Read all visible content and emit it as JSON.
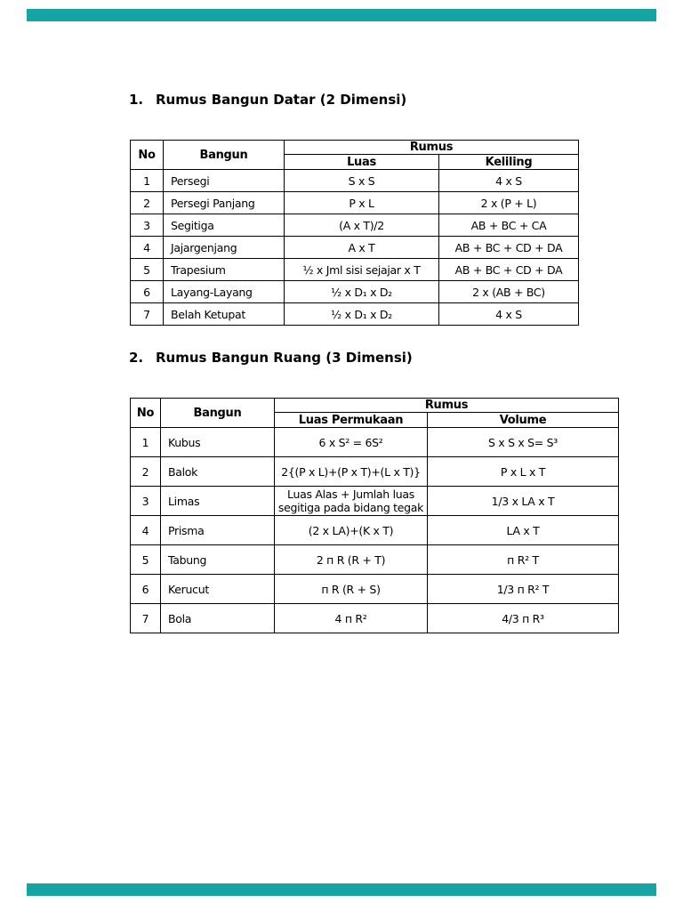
{
  "sections": {
    "s1": {
      "number": "1.",
      "title": "Rumus Bangun Datar (2 Dimensi)"
    },
    "s2": {
      "number": "2.",
      "title": "Rumus Bangun Ruang (3 Dimensi)"
    }
  },
  "table1": {
    "headers": {
      "no": "No",
      "bangun": "Bangun",
      "group": "Rumus",
      "sub1": "Luas",
      "sub2": "Keliling"
    },
    "rows": [
      {
        "no": "1",
        "bangun": "Persegi",
        "f1": "S x S",
        "f2": "4 x S"
      },
      {
        "no": "2",
        "bangun": "Persegi Panjang",
        "f1": "P x L",
        "f2": "2 x (P + L)"
      },
      {
        "no": "3",
        "bangun": "Segitiga",
        "f1": "(A x T)/2",
        "f2": "AB + BC + CA"
      },
      {
        "no": "4",
        "bangun": "Jajargenjang",
        "f1": "A x T",
        "f2": "AB + BC + CD + DA"
      },
      {
        "no": "5",
        "bangun": "Trapesium",
        "f1": "½ x Jml sisi sejajar x T",
        "f2": "AB + BC + CD + DA"
      },
      {
        "no": "6",
        "bangun": "Layang-Layang",
        "f1": "½ x D₁ x D₂",
        "f2": "2 x (AB + BC)"
      },
      {
        "no": "7",
        "bangun": "Belah Ketupat",
        "f1": "½ x D₁ x D₂",
        "f2": "4 x S"
      }
    ]
  },
  "table2": {
    "headers": {
      "no": "No",
      "bangun": "Bangun",
      "group": "Rumus",
      "sub1": "Luas Permukaan",
      "sub2": "Volume"
    },
    "rows": [
      {
        "no": "1",
        "bangun": "Kubus",
        "f1": "6 x S² = 6S²",
        "f2": "S x S x S= S³"
      },
      {
        "no": "2",
        "bangun": "Balok",
        "f1": "2{(P x L)+(P x T)+(L x T)}",
        "f2": "P x L x T"
      },
      {
        "no": "3",
        "bangun": "Limas",
        "f1": "Luas Alas + Jumlah luas segitiga pada bidang tegak",
        "f2": "1/3 x LA x T"
      },
      {
        "no": "4",
        "bangun": "Prisma",
        "f1": "(2 x LA)+(K x T)",
        "f2": "LA x T"
      },
      {
        "no": "5",
        "bangun": "Tabung",
        "f1": "2 п R (R + T)",
        "f2": "п R² T"
      },
      {
        "no": "6",
        "bangun": "Kerucut",
        "f1": "п R (R + S)",
        "f2": "1/3 п R² T"
      },
      {
        "no": "7",
        "bangun": "Bola",
        "f1": "4 п R²",
        "f2": "4/3 п R³"
      }
    ]
  },
  "decor": {
    "separator_color": "#16a3a3"
  }
}
